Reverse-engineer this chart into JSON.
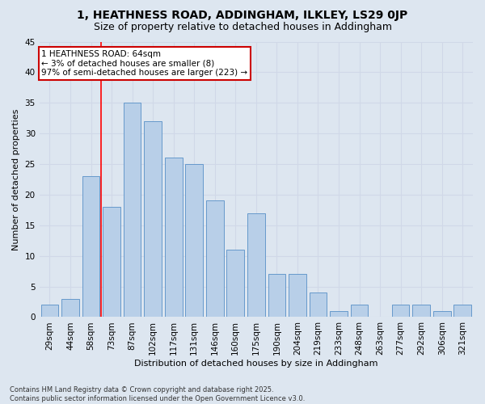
{
  "title": "1, HEATHNESS ROAD, ADDINGHAM, ILKLEY, LS29 0JP",
  "subtitle": "Size of property relative to detached houses in Addingham",
  "xlabel": "Distribution of detached houses by size in Addingham",
  "ylabel": "Number of detached properties",
  "categories": [
    "29sqm",
    "44sqm",
    "58sqm",
    "73sqm",
    "87sqm",
    "102sqm",
    "117sqm",
    "131sqm",
    "146sqm",
    "160sqm",
    "175sqm",
    "190sqm",
    "204sqm",
    "219sqm",
    "233sqm",
    "248sqm",
    "263sqm",
    "277sqm",
    "292sqm",
    "306sqm",
    "321sqm"
  ],
  "values": [
    2,
    3,
    23,
    18,
    35,
    32,
    26,
    25,
    19,
    11,
    17,
    7,
    7,
    4,
    1,
    2,
    0,
    2,
    2,
    1,
    2
  ],
  "bar_color": "#b8cfe8",
  "bar_edge_color": "#6699cc",
  "grid_color": "#d0d8e8",
  "bg_color": "#dde6f0",
  "annotation_text": "1 HEATHNESS ROAD: 64sqm\n← 3% of detached houses are smaller (8)\n97% of semi-detached houses are larger (223) →",
  "annotation_box_color": "#ffffff",
  "annotation_box_edge": "#cc0000",
  "footer": "Contains HM Land Registry data © Crown copyright and database right 2025.\nContains public sector information licensed under the Open Government Licence v3.0.",
  "ylim": [
    0,
    45
  ],
  "yticks": [
    0,
    5,
    10,
    15,
    20,
    25,
    30,
    35,
    40,
    45
  ],
  "title_fontsize": 10,
  "subtitle_fontsize": 9,
  "label_fontsize": 8,
  "tick_fontsize": 7.5,
  "footer_fontsize": 6,
  "annot_fontsize": 7.5
}
